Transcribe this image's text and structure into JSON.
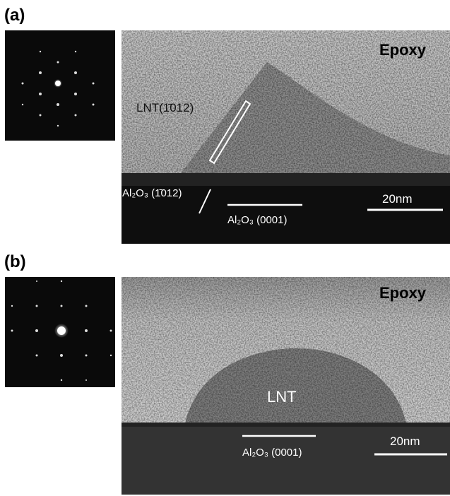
{
  "panels": [
    {
      "label": "(a)",
      "epoxy": "Epoxy",
      "annotations": [
        "LNT(1̄012)",
        "Al₂O₃ (1̄012)",
        "Al₂O₃ (0001)"
      ],
      "scale_bar": "20nm"
    },
    {
      "label": "(b)",
      "epoxy": "Epoxy",
      "annotations": [
        "LNT",
        "Al₂O₃ (0001)"
      ],
      "scale_bar": "20nm"
    }
  ]
}
